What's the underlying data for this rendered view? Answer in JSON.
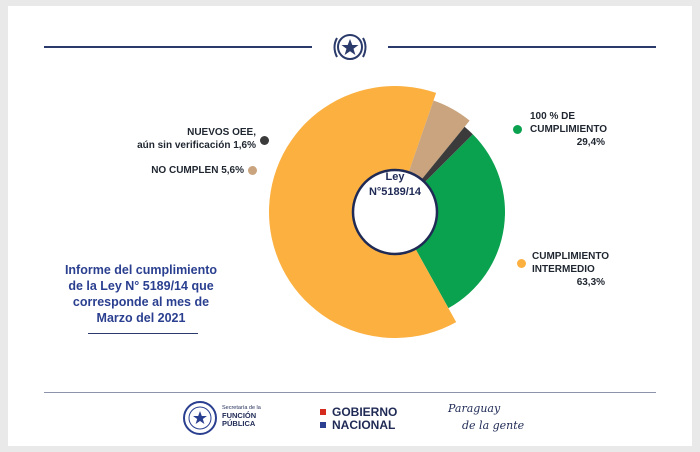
{
  "chart_data": {
    "type": "pie",
    "variant": "donut",
    "center_label": [
      "Ley",
      "N°5189/14"
    ],
    "slices": [
      {
        "label": [
          "100 % DE",
          "CUMPLIMIENTO"
        ],
        "value_label": "29,4%",
        "value": 29.4,
        "color": "#0aa14f"
      },
      {
        "label": [
          "CUMPLIMIENTO",
          "INTERMEDIO"
        ],
        "value_label": "63,3%",
        "value": 63.3,
        "color": "#fbb040"
      },
      {
        "label": [
          "NO CUMPLEN 5,6%"
        ],
        "value_label": "",
        "value": 5.6,
        "color": "#c9a47e"
      },
      {
        "label": [
          "NUEVOS OEE,",
          "aún sin verificación 1,6%"
        ],
        "value_label": "",
        "value": 1.6,
        "color": "#3b3b3b"
      }
    ]
  },
  "report_title": [
    "Informe del cumplimiento",
    "de la Ley N° 5189/14 que",
    "corresponde al mes de",
    "Marzo del 2021"
  ],
  "footer": {
    "sfp_small": "Secretaría de la",
    "sfp_line1": "FUNCIÓN",
    "sfp_line2": "PÚBLICA",
    "gobierno_line1": "GOBIERNO",
    "gobierno_line2": "NACIONAL",
    "paraguay_line1": "Paraguay",
    "paraguay_line2": "de la gente",
    "gobierno_colors": {
      "red": "#d52b1e",
      "blue": "#2a3f8f"
    }
  }
}
